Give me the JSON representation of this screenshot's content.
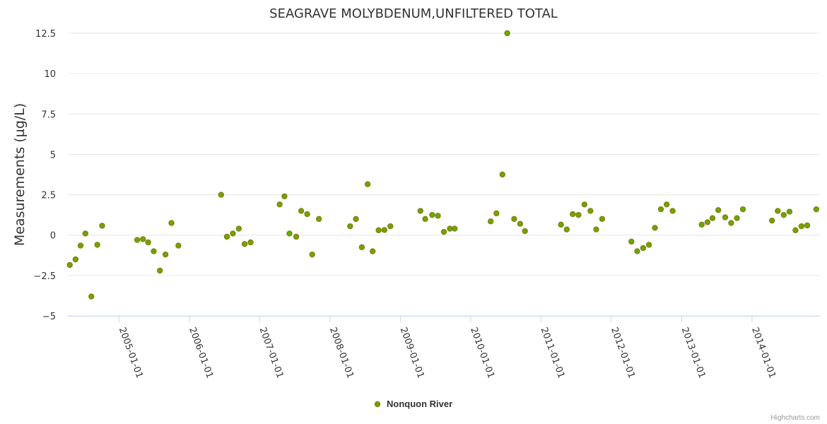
{
  "chart_data": {
    "type": "scatter",
    "title": "SEAGRAVE MOLYBDENUM,UNFILTERED TOTAL",
    "ylabel": "Measurements (µg/L)",
    "xlabel": "",
    "ylim": [
      -5,
      12.5
    ],
    "yticks": [
      "−5",
      "−2.5",
      "0",
      "2.5",
      "5",
      "7.5",
      "10",
      "12.5"
    ],
    "ytick_values": [
      -5,
      -2.5,
      0,
      2.5,
      5,
      7.5,
      10,
      12.5
    ],
    "xlim": [
      "2004-04-10",
      "2014-12-20"
    ],
    "xticks": [
      "2005-01-01",
      "2006-01-01",
      "2007-01-01",
      "2008-01-01",
      "2009-01-01",
      "2010-01-01",
      "2011-01-01",
      "2012-01-01",
      "2013-01-01",
      "2014-01-01"
    ],
    "grid": "horizontal",
    "legend_position": "bottom-center",
    "credit": "Highcharts.com",
    "series": [
      {
        "name": "Nonquon River",
        "color": "#66aa00",
        "edge_color": "#8a7a10",
        "points": [
          [
            "2004-04-20",
            -1.85
          ],
          [
            "2004-05-20",
            -1.5
          ],
          [
            "2004-06-15",
            -0.65
          ],
          [
            "2004-07-10",
            0.1
          ],
          [
            "2004-08-10",
            -3.8
          ],
          [
            "2004-09-10",
            -0.6
          ],
          [
            "2004-10-05",
            0.58
          ],
          [
            "2005-04-05",
            -0.3
          ],
          [
            "2005-05-05",
            -0.25
          ],
          [
            "2005-06-01",
            -0.45
          ],
          [
            "2005-06-30",
            -1.0
          ],
          [
            "2005-08-01",
            -2.2
          ],
          [
            "2005-08-30",
            -1.2
          ],
          [
            "2005-09-30",
            0.75
          ],
          [
            "2005-11-05",
            -0.65
          ],
          [
            "2006-06-15",
            2.5
          ],
          [
            "2006-07-15",
            -0.1
          ],
          [
            "2006-08-15",
            0.1
          ],
          [
            "2006-09-15",
            0.4
          ],
          [
            "2006-10-15",
            -0.55
          ],
          [
            "2006-11-15",
            -0.45
          ],
          [
            "2007-04-15",
            1.9
          ],
          [
            "2007-05-10",
            2.4
          ],
          [
            "2007-06-05",
            0.1
          ],
          [
            "2007-07-10",
            -0.1
          ],
          [
            "2007-08-05",
            1.5
          ],
          [
            "2007-09-05",
            1.3
          ],
          [
            "2007-10-01",
            -1.2
          ],
          [
            "2007-11-05",
            1.0
          ],
          [
            "2008-04-15",
            0.55
          ],
          [
            "2008-05-15",
            1.0
          ],
          [
            "2008-06-15",
            -0.75
          ],
          [
            "2008-07-15",
            3.15
          ],
          [
            "2008-08-10",
            -1.0
          ],
          [
            "2008-09-10",
            0.3
          ],
          [
            "2008-10-10",
            0.32
          ],
          [
            "2008-11-10",
            0.55
          ],
          [
            "2009-04-15",
            1.5
          ],
          [
            "2009-05-10",
            1.0
          ],
          [
            "2009-06-15",
            1.25
          ],
          [
            "2009-07-15",
            1.2
          ],
          [
            "2009-08-15",
            0.2
          ],
          [
            "2009-09-15",
            0.4
          ],
          [
            "2009-10-10",
            0.4
          ],
          [
            "2010-04-15",
            0.85
          ],
          [
            "2010-05-15",
            1.35
          ],
          [
            "2010-06-15",
            3.75
          ],
          [
            "2010-07-10",
            12.5
          ],
          [
            "2010-08-15",
            1.0
          ],
          [
            "2010-09-15",
            0.7
          ],
          [
            "2010-10-10",
            0.25
          ],
          [
            "2011-04-15",
            0.65
          ],
          [
            "2011-05-15",
            0.35
          ],
          [
            "2011-06-15",
            1.3
          ],
          [
            "2011-07-15",
            1.25
          ],
          [
            "2011-08-15",
            1.9
          ],
          [
            "2011-09-15",
            1.5
          ],
          [
            "2011-10-15",
            0.35
          ],
          [
            "2011-11-15",
            1.0
          ],
          [
            "2012-04-15",
            -0.4
          ],
          [
            "2012-05-15",
            -1.0
          ],
          [
            "2012-06-15",
            -0.8
          ],
          [
            "2012-07-15",
            -0.6
          ],
          [
            "2012-08-15",
            0.45
          ],
          [
            "2012-09-15",
            1.6
          ],
          [
            "2012-10-15",
            1.9
          ],
          [
            "2012-11-15",
            1.5
          ],
          [
            "2013-04-15",
            0.65
          ],
          [
            "2013-05-15",
            0.8
          ],
          [
            "2013-06-10",
            1.05
          ],
          [
            "2013-07-10",
            1.55
          ],
          [
            "2013-08-15",
            1.1
          ],
          [
            "2013-09-15",
            0.75
          ],
          [
            "2013-10-15",
            1.05
          ],
          [
            "2013-11-15",
            1.6
          ],
          [
            "2014-04-15",
            0.9
          ],
          [
            "2014-05-15",
            1.5
          ],
          [
            "2014-06-15",
            1.25
          ],
          [
            "2014-07-15",
            1.45
          ],
          [
            "2014-08-15",
            0.3
          ],
          [
            "2014-09-15",
            0.55
          ],
          [
            "2014-10-15",
            0.6
          ],
          [
            "2014-12-01",
            1.6
          ]
        ]
      }
    ]
  }
}
